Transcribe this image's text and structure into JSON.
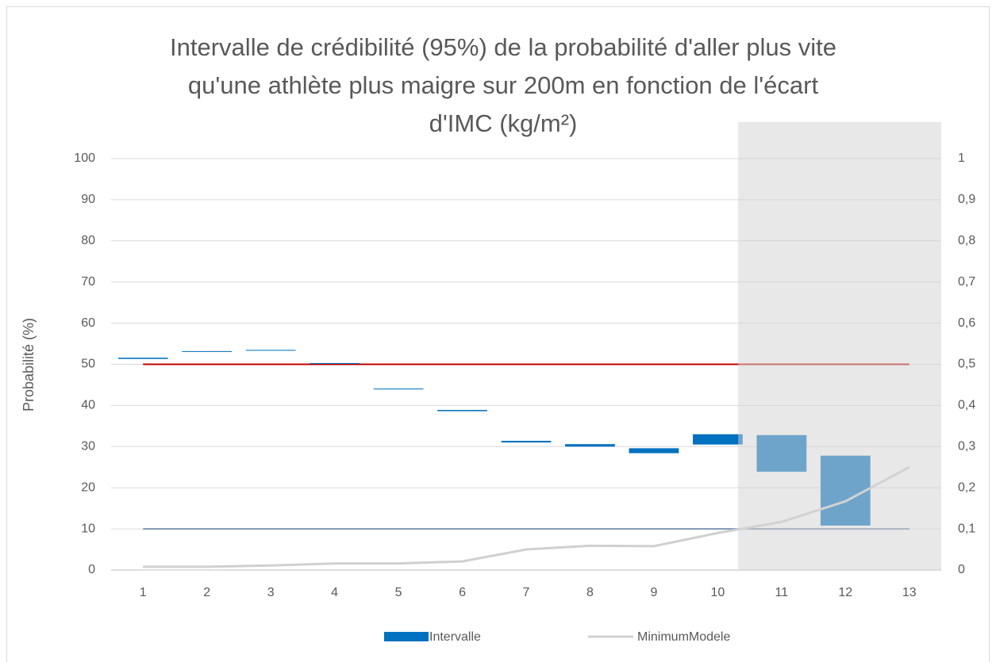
{
  "chart_data": {
    "type": "floating_bar",
    "title": [
      "Intervalle de crédibilité (95%) de la probabilité d'aller plus vite",
      "qu'une athlète plus maigre sur 200m en fonction de l'écart",
      "d'IMC (kg/m²)"
    ],
    "ylabel": "Probabilité (%)",
    "categories": [
      1,
      2,
      3,
      4,
      5,
      6,
      7,
      8,
      9,
      10,
      11,
      12,
      13
    ],
    "series": [
      {
        "name": "Intervalle",
        "color": "#0070c0",
        "low": [
          51.3,
          53.0,
          53.3,
          50.1,
          43.9,
          38.6,
          31.0,
          30.0,
          28.4,
          30.5,
          23.9,
          10.8,
          null
        ],
        "high": [
          51.6,
          53.2,
          53.5,
          50.3,
          44.1,
          38.9,
          31.4,
          30.6,
          29.6,
          33.0,
          32.8,
          27.8,
          null
        ]
      },
      {
        "name": "MinimumModele",
        "color": "#d0d0d0",
        "axis": "y2",
        "values": [
          0.008,
          0.008,
          0.011,
          0.016,
          0.016,
          0.021,
          0.05,
          0.059,
          0.058,
          0.09,
          0.117,
          0.167,
          0.25
        ]
      }
    ],
    "reference_lines": [
      {
        "value": 50,
        "color": "#c00000"
      },
      {
        "value": 10,
        "color": "#7f96b2"
      }
    ],
    "highlight_xlim": [
      10.32,
      13.5
    ],
    "ylim": [
      0,
      100
    ],
    "yticks": [
      0,
      10,
      20,
      30,
      40,
      50,
      60,
      70,
      80,
      90,
      100
    ],
    "y2lim": [
      0,
      1
    ],
    "y2ticks": [
      0,
      {
        "value": 0.1,
        "label": "0,1"
      },
      {
        "value": 0.2,
        "label": "0,2"
      },
      {
        "value": 0.3,
        "label": "0,3"
      },
      {
        "value": 0.4,
        "label": "0,4"
      },
      {
        "value": 0.5,
        "label": "0,5"
      },
      {
        "value": 0.6,
        "label": "0,6"
      },
      {
        "value": 0.7,
        "label": "0,7"
      },
      {
        "value": 0.8,
        "label": "0,8"
      },
      {
        "value": 0.9,
        "label": "0,9"
      },
      1
    ],
    "grid": true,
    "legend": "bottom"
  }
}
